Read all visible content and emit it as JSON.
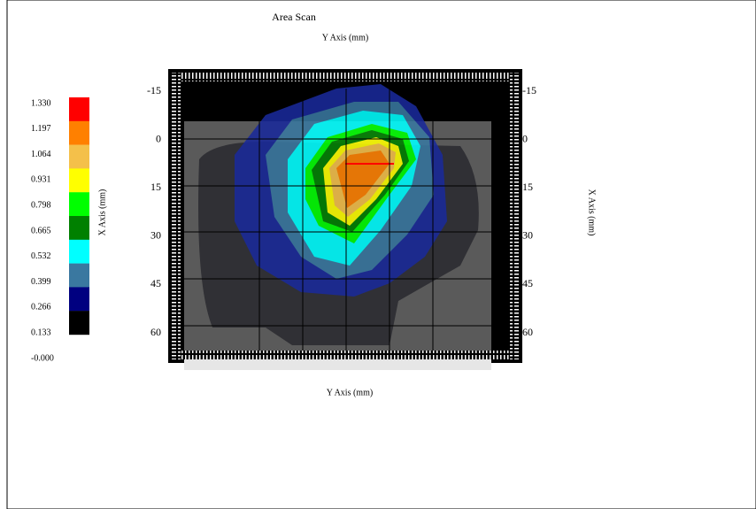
{
  "title": "Area Scan",
  "top_axis_label": "Y Axis (mm)",
  "bottom_axis_label": "Y Axis (mm)",
  "left_axis_label": "X Axis (mm)",
  "right_axis_label": "X Axis (mm)",
  "left_ticks": [
    "-15",
    "0",
    "15",
    "30",
    "45",
    "60"
  ],
  "right_ticks": [
    "-15",
    "0",
    "15",
    "30",
    "45",
    "60"
  ],
  "color_scale": {
    "labels": [
      "1.330",
      "1.197",
      "1.064",
      "0.931",
      "0.798",
      "0.665",
      "0.532",
      "0.399",
      "0.266",
      "0.133",
      "-0.000"
    ],
    "colors": [
      "#ff0000",
      "#ff8000",
      "#f4c04a",
      "#ffff00",
      "#00ff00",
      "#008000",
      "#00ffff",
      "#3a78a0",
      "#000080",
      "#000000"
    ]
  }
}
